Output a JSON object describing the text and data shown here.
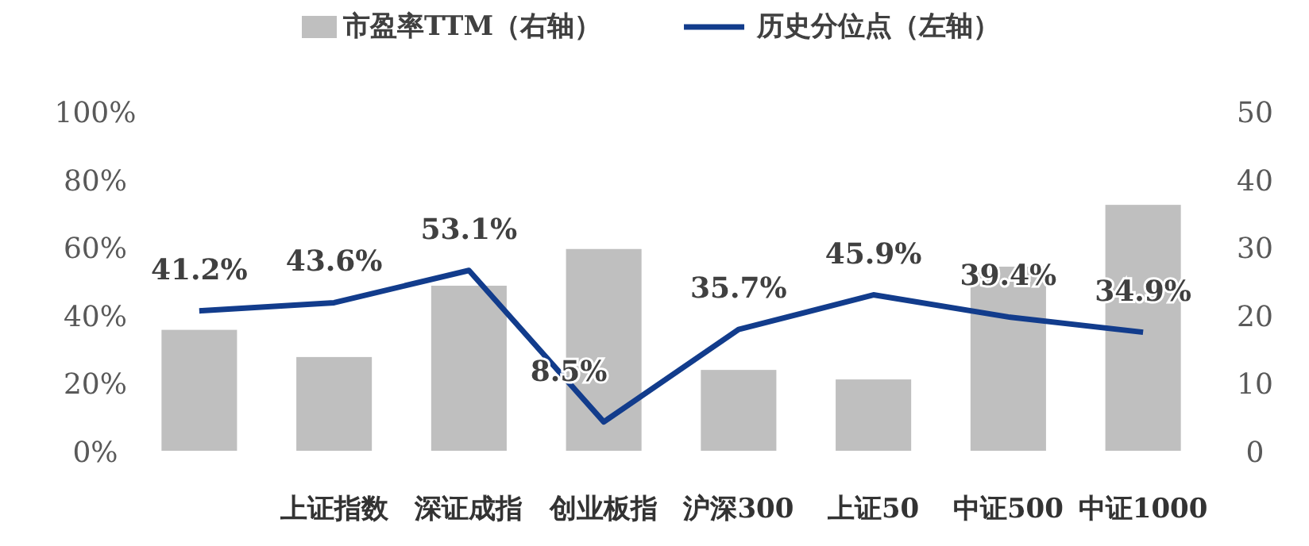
{
  "chart_data": {
    "type": "bar",
    "categories": [
      null,
      "上证指数",
      "深证成指",
      "创业板指",
      "沪深300",
      "上证50",
      "中证500",
      "中证1000"
    ],
    "series": [
      {
        "name": "市盈率TTM（右轴）",
        "axis": "y2",
        "color": "#bfbfbf",
        "values": [
          17.8,
          13.8,
          24.3,
          29.7,
          11.9,
          10.5,
          27.1,
          36.2
        ]
      },
      {
        "name": "历史分位点（左轴）",
        "type": "line",
        "color": "#123c8c",
        "values": [
          41.2,
          43.6,
          53.1,
          8.5,
          35.7,
          45.9,
          39.4,
          34.9
        ],
        "value_labels": [
          "41.2%",
          "43.6%",
          "53.1%",
          "8.5%",
          "35.7%",
          "45.9%",
          "39.4%",
          "34.9%"
        ]
      }
    ],
    "ylim": [
      0,
      100
    ],
    "yticks": [
      {
        "value": 0,
        "label": "0%"
      },
      {
        "value": 20,
        "label": "20%"
      },
      {
        "value": 40,
        "label": "40%"
      },
      {
        "value": 60,
        "label": "60%"
      },
      {
        "value": 80,
        "label": "80%"
      },
      {
        "value": 100,
        "label": "100%"
      }
    ],
    "y2lim": [
      0,
      50
    ],
    "y2ticks": [
      0,
      10,
      20,
      30,
      40,
      50
    ],
    "legend": "top",
    "grid": false
  }
}
